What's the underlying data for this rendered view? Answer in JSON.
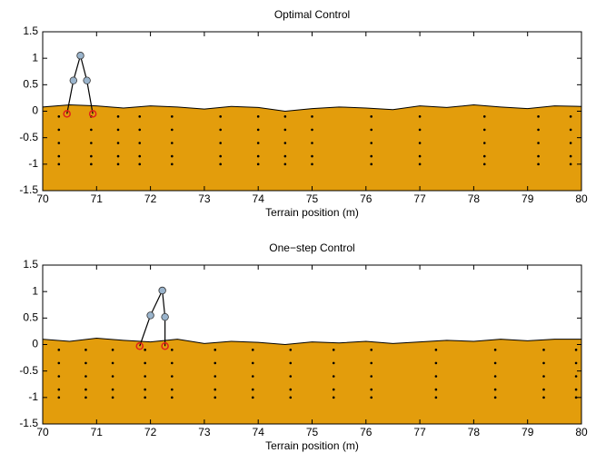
{
  "chart_data": [
    {
      "type": "walker",
      "title": "Optimal Control",
      "x_label": "Terrain position (m)",
      "xlim": [
        70,
        80
      ],
      "xticks": [
        70,
        71,
        72,
        73,
        74,
        75,
        76,
        77,
        78,
        79,
        80
      ],
      "ylim": [
        -1.5,
        1.5
      ],
      "yticks": [
        -1.5,
        -1,
        -0.5,
        0,
        0.5,
        1,
        1.5
      ],
      "terrain": {
        "color": "#e39d0c",
        "x": [
          70,
          70.5,
          71,
          71.5,
          72,
          72.5,
          73,
          73.5,
          74,
          74.5,
          75,
          75.5,
          76,
          76.5,
          77,
          77.5,
          78,
          78.5,
          79,
          79.5,
          80
        ],
        "y": [
          0.08,
          0.12,
          0.1,
          0.06,
          0.1,
          0.08,
          0.04,
          0.09,
          0.07,
          0.0,
          0.05,
          0.08,
          0.06,
          0.03,
          0.1,
          0.07,
          0.12,
          0.08,
          0.05,
          0.1,
          0.09
        ]
      },
      "walker": {
        "joint_color": "#9ab4cc",
        "foot_color": "#e0201b",
        "x": [
          70.45,
          70.57,
          70.7,
          70.82,
          70.93
        ],
        "y": [
          -0.05,
          0.58,
          1.05,
          0.58,
          -0.05
        ]
      },
      "columns": [
        {
          "x": 70.3,
          "y": [
            -0.1,
            -0.35,
            -0.6,
            -0.85,
            -1.0
          ]
        },
        {
          "x": 70.9,
          "y": [
            -0.1,
            -0.35,
            -0.6,
            -0.85,
            -1.0
          ]
        },
        {
          "x": 71.4,
          "y": [
            -0.1,
            -0.35,
            -0.6,
            -0.85,
            -1.0
          ]
        },
        {
          "x": 71.8,
          "y": [
            -0.1,
            -0.35,
            -0.6,
            -0.85,
            -1.0
          ]
        },
        {
          "x": 72.4,
          "y": [
            -0.1,
            -0.35,
            -0.6,
            -0.85,
            -1.0
          ]
        },
        {
          "x": 73.3,
          "y": [
            -0.1,
            -0.35,
            -0.6,
            -0.85,
            -1.0
          ]
        },
        {
          "x": 74.0,
          "y": [
            -0.1,
            -0.35,
            -0.6,
            -0.85,
            -1.0
          ]
        },
        {
          "x": 74.5,
          "y": [
            -0.1,
            -0.35,
            -0.6,
            -0.85,
            -1.0
          ]
        },
        {
          "x": 75.0,
          "y": [
            -0.1,
            -0.35,
            -0.6,
            -0.85,
            -1.0
          ]
        },
        {
          "x": 76.1,
          "y": [
            -0.1,
            -0.35,
            -0.6,
            -0.85,
            -1.0
          ]
        },
        {
          "x": 77.0,
          "y": [
            -0.1,
            -0.35,
            -0.6,
            -0.85,
            -1.0
          ]
        },
        {
          "x": 78.2,
          "y": [
            -0.1,
            -0.35,
            -0.6,
            -0.85,
            -1.0
          ]
        },
        {
          "x": 79.2,
          "y": [
            -0.1,
            -0.35,
            -0.6,
            -0.85,
            -1.0
          ]
        },
        {
          "x": 79.8,
          "y": [
            -0.1,
            -0.35,
            -0.6,
            -0.85,
            -1.0
          ]
        }
      ]
    },
    {
      "type": "walker",
      "title": "One−step Control",
      "x_label": "Terrain position (m)",
      "xlim": [
        70,
        80
      ],
      "xticks": [
        70,
        71,
        72,
        73,
        74,
        75,
        76,
        77,
        78,
        79,
        80
      ],
      "ylim": [
        -1.5,
        1.5
      ],
      "yticks": [
        -1.5,
        -1,
        -0.5,
        0,
        0.5,
        1,
        1.5
      ],
      "terrain": {
        "color": "#e39d0c",
        "x": [
          70,
          70.5,
          71,
          71.5,
          72,
          72.5,
          73,
          73.5,
          74,
          74.5,
          75,
          75.5,
          76,
          76.5,
          77,
          77.5,
          78,
          78.5,
          79,
          79.5,
          80
        ],
        "y": [
          0.1,
          0.06,
          0.12,
          0.08,
          0.05,
          0.1,
          0.02,
          0.06,
          0.04,
          0.0,
          0.05,
          0.03,
          0.06,
          0.02,
          0.05,
          0.08,
          0.06,
          0.1,
          0.07,
          0.1,
          0.1
        ]
      },
      "walker": {
        "joint_color": "#9ab4cc",
        "foot_color": "#e0201b",
        "x": [
          71.8,
          72.0,
          72.22,
          72.27,
          72.27
        ],
        "y": [
          -0.03,
          0.55,
          1.02,
          0.52,
          -0.03
        ]
      },
      "columns": [
        {
          "x": 70.3,
          "y": [
            -0.1,
            -0.35,
            -0.6,
            -0.85,
            -1.0
          ]
        },
        {
          "x": 70.8,
          "y": [
            -0.1,
            -0.35,
            -0.6,
            -0.85,
            -1.0
          ]
        },
        {
          "x": 71.3,
          "y": [
            -0.1,
            -0.35,
            -0.6,
            -0.85,
            -1.0
          ]
        },
        {
          "x": 71.9,
          "y": [
            -0.1,
            -0.35,
            -0.6,
            -0.85,
            -1.0
          ]
        },
        {
          "x": 72.4,
          "y": [
            -0.1,
            -0.35,
            -0.6,
            -0.85,
            -1.0
          ]
        },
        {
          "x": 73.2,
          "y": [
            -0.1,
            -0.35,
            -0.6,
            -0.85,
            -1.0
          ]
        },
        {
          "x": 73.9,
          "y": [
            -0.1,
            -0.35,
            -0.6,
            -0.85,
            -1.0
          ]
        },
        {
          "x": 74.6,
          "y": [
            -0.1,
            -0.35,
            -0.6,
            -0.85,
            -1.0
          ]
        },
        {
          "x": 75.4,
          "y": [
            -0.1,
            -0.35,
            -0.6,
            -0.85,
            -1.0
          ]
        },
        {
          "x": 76.1,
          "y": [
            -0.1,
            -0.35,
            -0.6,
            -0.85,
            -1.0
          ]
        },
        {
          "x": 77.3,
          "y": [
            -0.1,
            -0.35,
            -0.6,
            -0.85,
            -1.0
          ]
        },
        {
          "x": 78.4,
          "y": [
            -0.1,
            -0.35,
            -0.6,
            -0.85,
            -1.0
          ]
        },
        {
          "x": 79.3,
          "y": [
            -0.1,
            -0.35,
            -0.6,
            -0.85,
            -1.0
          ]
        },
        {
          "x": 79.9,
          "y": [
            -0.1,
            -0.35,
            -0.6,
            -0.85,
            -1.0
          ]
        }
      ]
    }
  ]
}
